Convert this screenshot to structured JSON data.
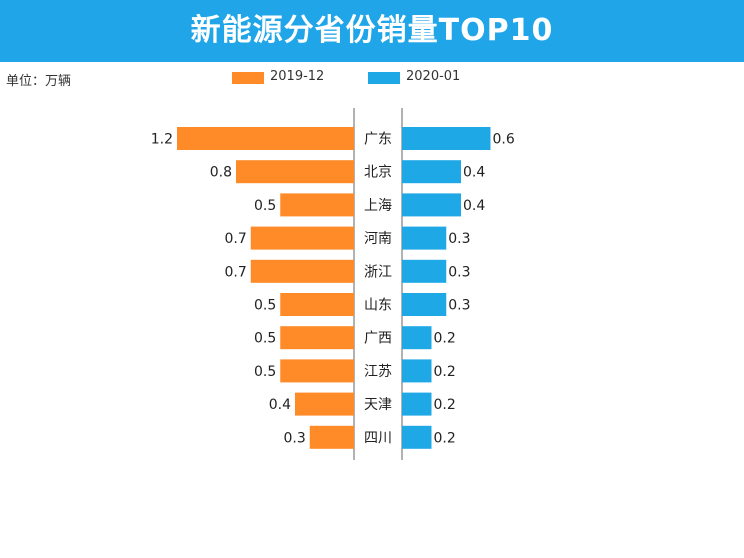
{
  "header": {
    "title": "新能源分省份销量TOP10"
  },
  "unit_label": "单位：万辆",
  "colors": {
    "banner": "#1fa5e8",
    "left_series": "#ff8a28",
    "right_series": "#1fa8e6",
    "axis": "#999999"
  },
  "chart_data": {
    "type": "bar",
    "orientation": "horizontal-butterfly",
    "title": "新能源分省份销量TOP10",
    "unit": "单位：万辆",
    "categories": [
      "广东",
      "北京",
      "上海",
      "河南",
      "浙江",
      "山东",
      "广西",
      "江苏",
      "天津",
      "四川"
    ],
    "series": [
      {
        "name": "2019-12",
        "side": "left",
        "color": "#ff8a28",
        "values": [
          1.2,
          0.8,
          0.5,
          0.7,
          0.7,
          0.5,
          0.5,
          0.5,
          0.4,
          0.3
        ],
        "labels": [
          "1.2",
          "0.8",
          "0.5",
          "0.7",
          "0.7",
          "0.5",
          "0.5",
          "0.5",
          "0.4",
          "0.3"
        ]
      },
      {
        "name": "2020-01",
        "side": "right",
        "color": "#1fa8e6",
        "values": [
          0.6,
          0.4,
          0.4,
          0.3,
          0.3,
          0.3,
          0.2,
          0.2,
          0.2,
          0.2
        ],
        "labels": [
          "0.6",
          "0.4",
          "0.4",
          "0.3",
          "0.3",
          "0.3",
          "0.2",
          "0.2",
          "0.2",
          "0.2"
        ]
      }
    ],
    "legend_position": "top-center",
    "grid": false
  }
}
